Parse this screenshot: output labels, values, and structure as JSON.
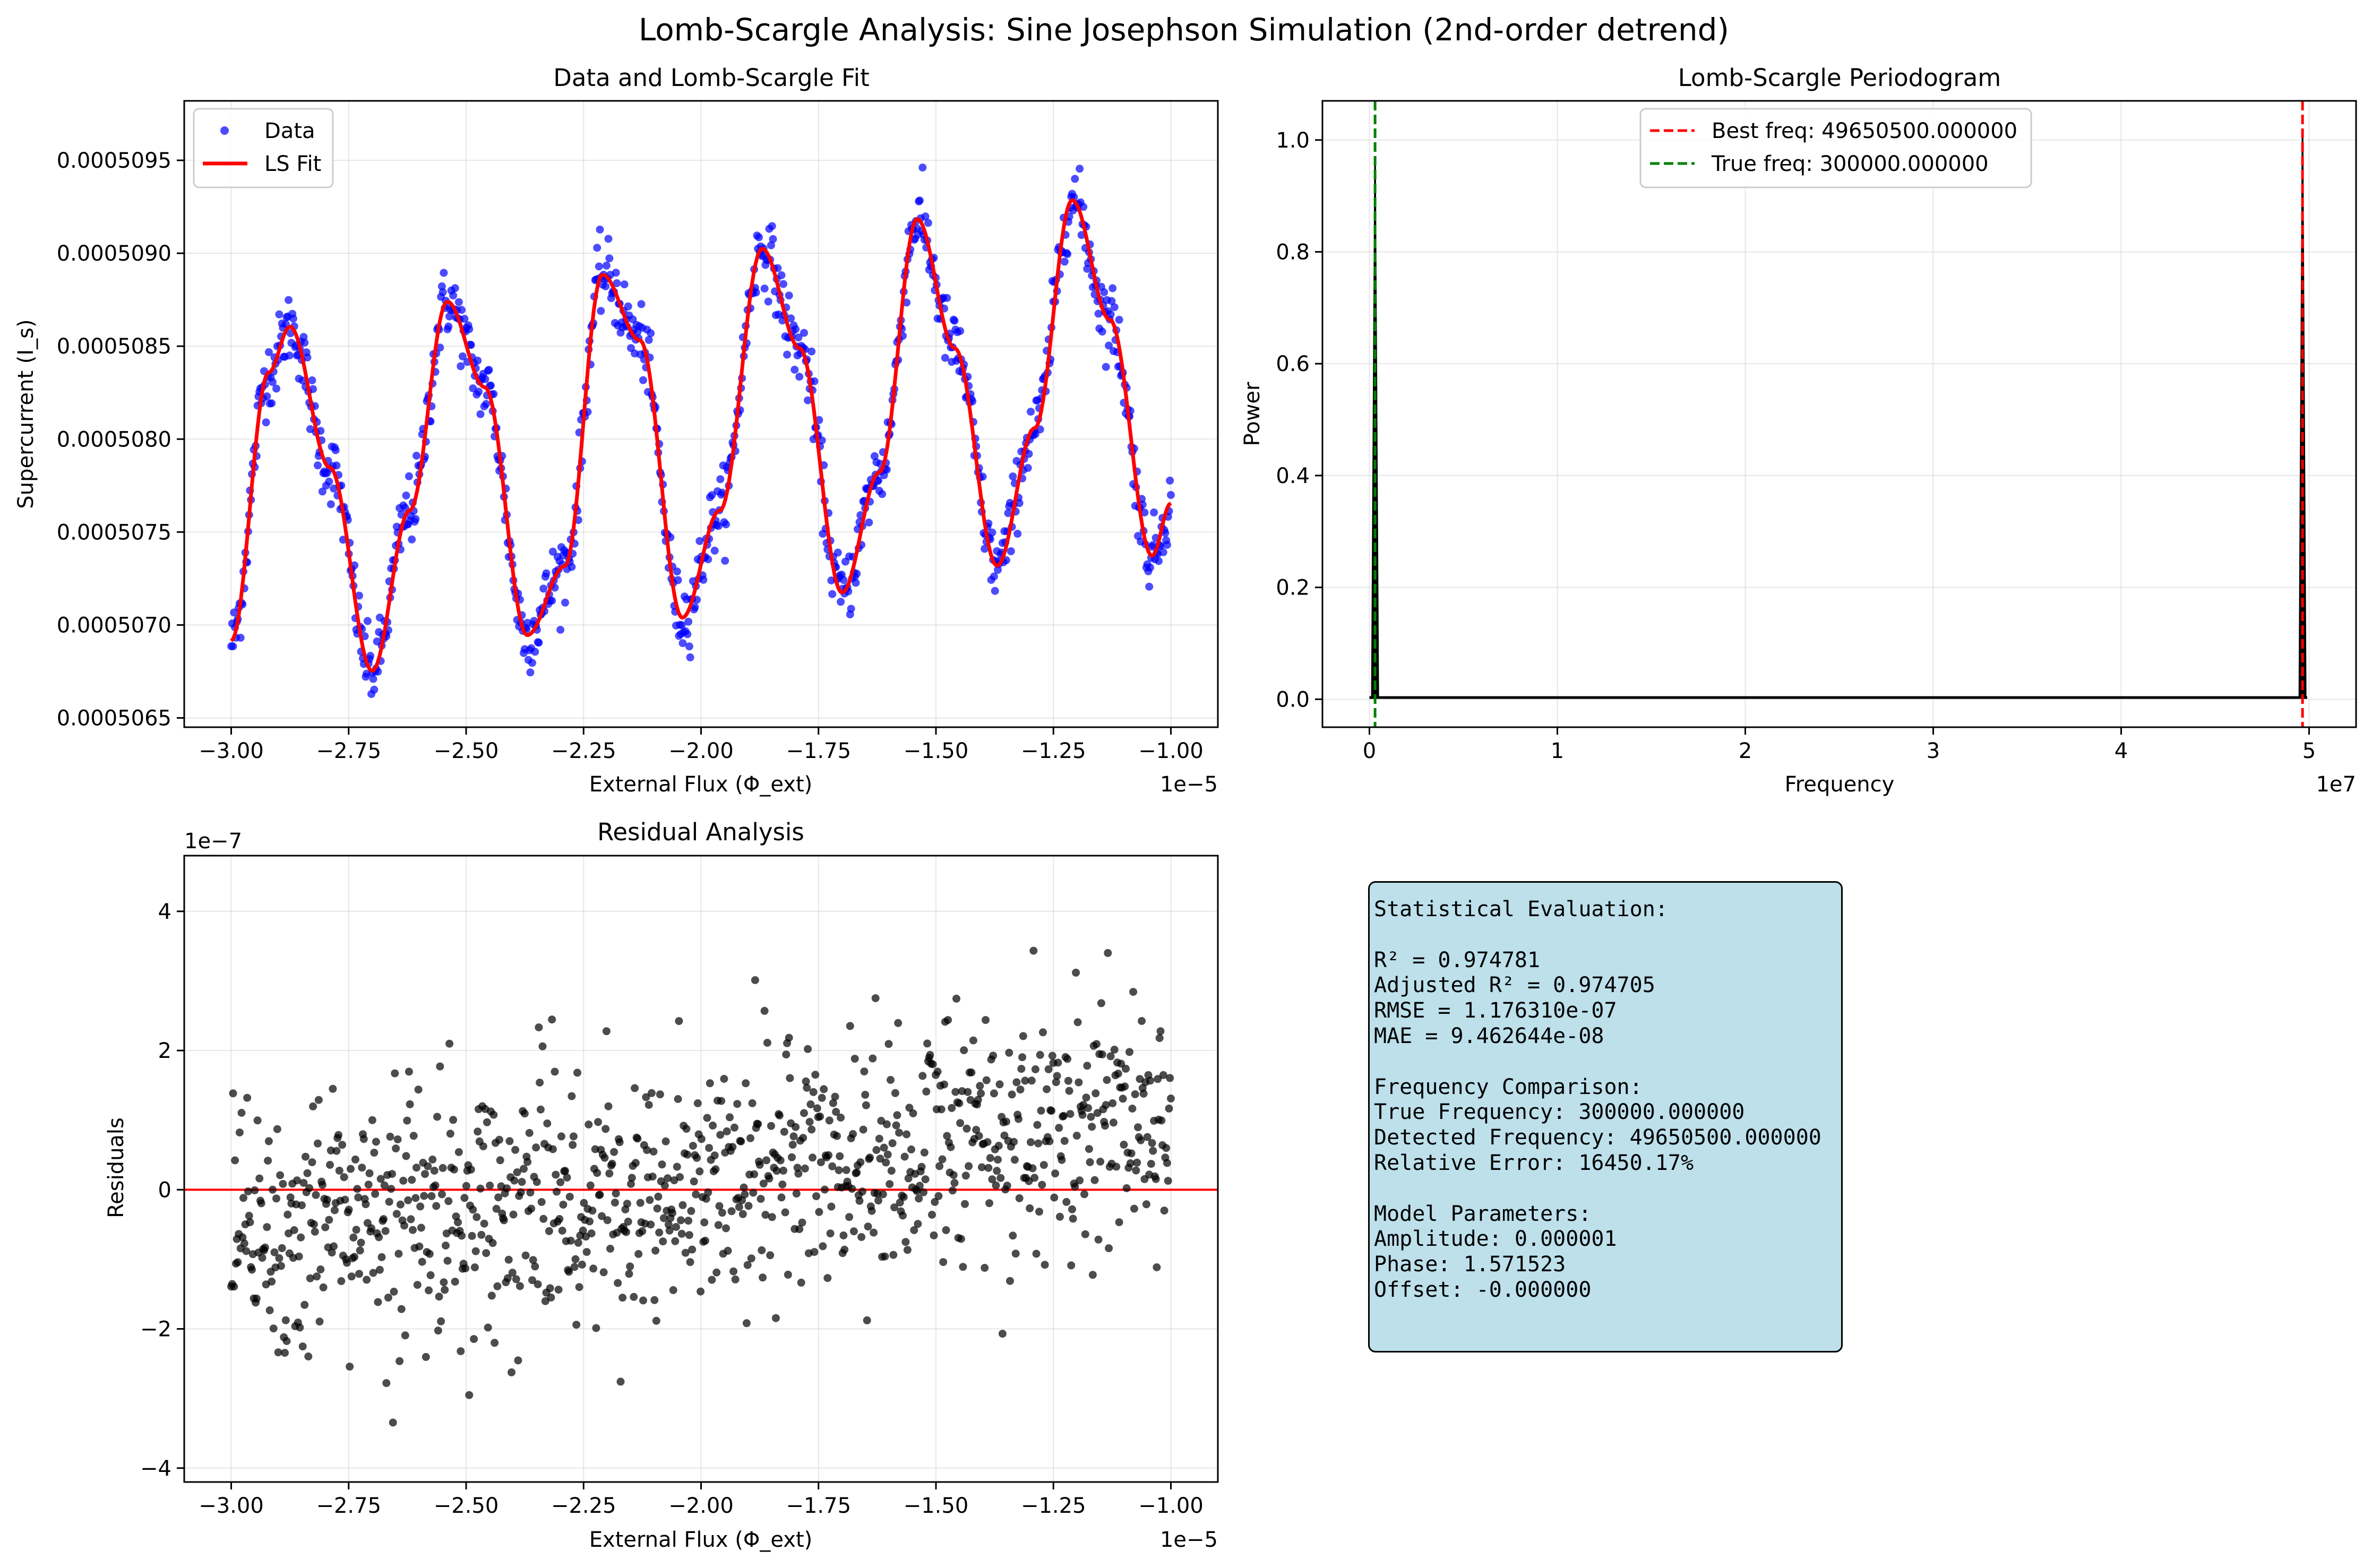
{
  "figure": {
    "suptitle": "Lomb-Scargle Analysis: Sine Josephson Simulation (2nd-order detrend)"
  },
  "panels": {
    "fit": {
      "title": "Data and Lomb-Scargle Fit",
      "xlabel": "External Flux (Φ_ext)",
      "ylabel": "Supercurrent (I_s)",
      "x_offset_text": "1e−5",
      "legend": [
        "Data",
        "LS Fit"
      ]
    },
    "periodogram": {
      "title": "Lomb-Scargle Periodogram",
      "xlabel": "Frequency",
      "ylabel": "Power",
      "x_offset_text": "1e7",
      "legend": [
        "Best freq: 49650500.000000",
        "True freq: 300000.000000"
      ]
    },
    "residuals": {
      "title": "Residual Analysis",
      "xlabel": "External Flux (Φ_ext)",
      "ylabel": "Residuals",
      "x_offset_text": "1e−5",
      "y_offset_text": "1e−7"
    }
  },
  "stats_text": "Statistical Evaluation:\n\nR² = 0.974781\nAdjusted R² = 0.974705\nRMSE = 1.176310e-07\nMAE = 9.462644e-08\n\nFrequency Comparison:\nTrue Frequency: 300000.000000\nDetected Frequency: 49650500.000000\nRelative Error: 16450.17%\n\nModel Parameters:\nAmplitude: 0.000001\nPhase: 1.571523\nOffset: -0.000000",
  "colors": {
    "data_points": "#0000ff",
    "fit_line": "#ff0000",
    "best_freq_line": "#ff0000",
    "true_freq_line": "#008000",
    "periodogram_line": "#000000",
    "residual_points": "#000000",
    "zero_line": "#ff0000",
    "stats_box": "#add8e6"
  },
  "chart_data": [
    {
      "type": "scatter",
      "title": "Data and Lomb-Scargle Fit",
      "xlabel": "External Flux (Φ_ext)",
      "ylabel": "Supercurrent (I_s)",
      "x_scale_note": "1e−5",
      "xlim": [
        -3.1e-05,
        -9e-06
      ],
      "ylim": [
        0.00050645,
        0.00050982
      ],
      "xticks": [
        -3.0,
        -2.75,
        -2.5,
        -2.25,
        -2.0,
        -1.75,
        -1.5,
        -1.25,
        -1.0
      ],
      "xtick_labels": [
        "−3.00",
        "−2.75",
        "−2.50",
        "−2.25",
        "−2.00",
        "−1.75",
        "−1.50",
        "−1.25",
        "−1.00"
      ],
      "yticks": [
        0.0005065,
        0.000507,
        0.0005075,
        0.000508,
        0.0005085,
        0.000509,
        0.0005095
      ],
      "ytick_labels": [
        "0.0005065",
        "0.0005070",
        "0.0005075",
        "0.0005080",
        "0.0005085",
        "0.0005090",
        "0.0005095"
      ],
      "legend_position": "upper-left",
      "grid": true,
      "series": [
        {
          "name": "LS Fit",
          "kind": "line",
          "x": [
            -3e-05,
            -2.92e-05,
            -2.875e-05,
            -2.79e-05,
            -2.7e-05,
            -2.62e-05,
            -2.54e-05,
            -2.46e-05,
            -2.37e-05,
            -2.29e-05,
            -2.21e-05,
            -2.13e-05,
            -2.04e-05,
            -1.96e-05,
            -1.87e-05,
            -1.79e-05,
            -1.7e-05,
            -1.62e-05,
            -1.54e-05,
            -1.46e-05,
            -1.37e-05,
            -1.29e-05,
            -1.21e-05,
            -1.13e-05,
            -1.04e-05,
            -1e-05
          ],
          "y": [
            0.000506915,
            0.000508359,
            0.000508605,
            0.000507847,
            0.000506753,
            0.000507617,
            0.00050874,
            0.000508279,
            0.000506945,
            0.000507317,
            0.000508885,
            0.000508532,
            0.000507039,
            0.000507616,
            0.000509025,
            0.000508489,
            0.000507174,
            0.000507822,
            0.000509185,
            0.000508489,
            0.000507319,
            0.000508059,
            0.000509286,
            0.000508643,
            0.000507372,
            0.000507655
          ]
        },
        {
          "name": "Data",
          "kind": "points",
          "points": "scatter of ~1000 noisy samples around LS Fit (σ≈1.2e-7)"
        }
      ]
    },
    {
      "type": "line",
      "title": "Lomb-Scargle Periodogram",
      "xlabel": "Frequency",
      "ylabel": "Power",
      "x_scale_note": "1e7",
      "xlim": [
        -2500000.0,
        52500000.0
      ],
      "ylim": [
        -0.05,
        1.07
      ],
      "xticks": [
        0,
        10000000.0,
        20000000.0,
        30000000.0,
        40000000.0,
        50000000.0
      ],
      "xtick_labels": [
        "0",
        "1",
        "2",
        "3",
        "4",
        "5"
      ],
      "yticks": [
        0.0,
        0.2,
        0.4,
        0.6,
        0.8,
        1.0
      ],
      "ytick_labels": [
        "0.0",
        "0.2",
        "0.4",
        "0.6",
        "0.8",
        "1.0"
      ],
      "legend_position": "upper-center",
      "grid": true,
      "peaks": [
        {
          "x": 300000,
          "y": 0.97
        },
        {
          "x": 49650500,
          "y": 1.02
        }
      ],
      "vlines": [
        {
          "name": "Best freq: 49650500.000000",
          "x": 49650500,
          "style": "dashed",
          "color": "#ff0000"
        },
        {
          "name": "True freq: 300000.000000",
          "x": 300000,
          "style": "dashed",
          "color": "#008000"
        }
      ]
    },
    {
      "type": "scatter",
      "title": "Residual Analysis",
      "xlabel": "External Flux (Φ_ext)",
      "ylabel": "Residuals",
      "x_scale_note": "1e−5",
      "y_scale_note": "1e−7",
      "xlim": [
        -3.1e-05,
        -9e-06
      ],
      "ylim": [
        -4.2e-07,
        4.8e-07
      ],
      "xticks": [
        -3.0,
        -2.75,
        -2.5,
        -2.25,
        -2.0,
        -1.75,
        -1.5,
        -1.25,
        -1.0
      ],
      "xtick_labels": [
        "−3.00",
        "−2.75",
        "−2.50",
        "−2.25",
        "−2.00",
        "−1.75",
        "−1.50",
        "−1.25",
        "−1.00"
      ],
      "yticks": [
        -4,
        -2,
        0,
        2,
        4
      ],
      "ytick_labels": [
        "−4",
        "−2",
        "0",
        "2",
        "4"
      ],
      "grid": true,
      "hline": {
        "y": 0,
        "color": "#ff0000"
      },
      "trend": {
        "x": [
          -3e-05,
          -1e-05
        ],
        "y": [
          -8e-08,
          1.1e-07
        ]
      },
      "spread_sigma": 1.17e-07
    }
  ]
}
